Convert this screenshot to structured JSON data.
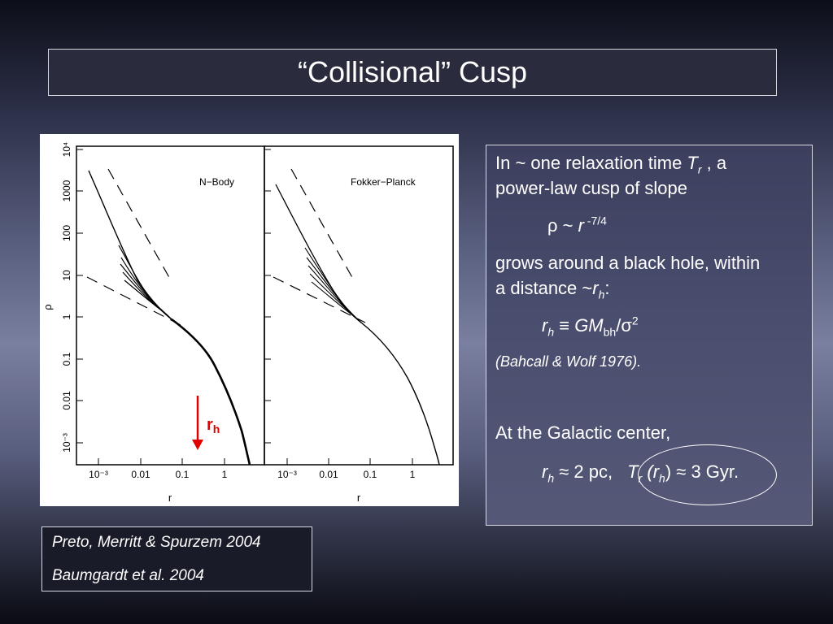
{
  "slide": {
    "title": "“Collisional” Cusp"
  },
  "figure": {
    "panels": [
      {
        "label": "N−Body"
      },
      {
        "label": "Fokker−Planck"
      }
    ],
    "y_axis_label": "ρ",
    "x_axis_label": "r",
    "y_ticks": [
      "10⁴",
      "1000",
      "100",
      "10",
      "1",
      "0.1",
      "0.01",
      "10⁻³"
    ],
    "x_ticks": [
      "10⁻³",
      "0.01",
      "0.1",
      "1"
    ],
    "annotation": {
      "text": "r",
      "sub": "h",
      "color": "#e00000"
    }
  },
  "text_box": {
    "line1a": "In ~ one relaxation time ",
    "line1_T": "T",
    "line1_Tsub": "r",
    "line1b": " , a",
    "line2": "power-law cusp of slope",
    "rho_formula": "ρ ~ ",
    "rho_r": "r",
    "rho_exp": " -7/4",
    "line3": "grows around a black hole, within",
    "line4a": "a distance ~",
    "line4_r": "r",
    "line4_sub": "h",
    "line4b": ":",
    "rh_r": "r",
    "rh_sub": "h",
    "rh_mid": " ≡ ",
    "rh_GM": "GM",
    "rh_GMsub": "bh",
    "rh_sigma": "/σ",
    "rh_exp": "2",
    "citation": "(Bahcall & Wolf 1976).",
    "gc_line": "At the Galactic center,",
    "gc_r": "r",
    "gc_rsub": "h",
    "gc_val": " ≈ 2 pc,",
    "gc_T": "T",
    "gc_Tsub": "r",
    "gc_paren_r": " (r",
    "gc_paren_sub": "h",
    "gc_tail": ") ≈ 3 Gyr."
  },
  "references": [
    "Preto, Merritt & Spurzem 2004",
    "Baumgardt et al. 2004"
  ]
}
